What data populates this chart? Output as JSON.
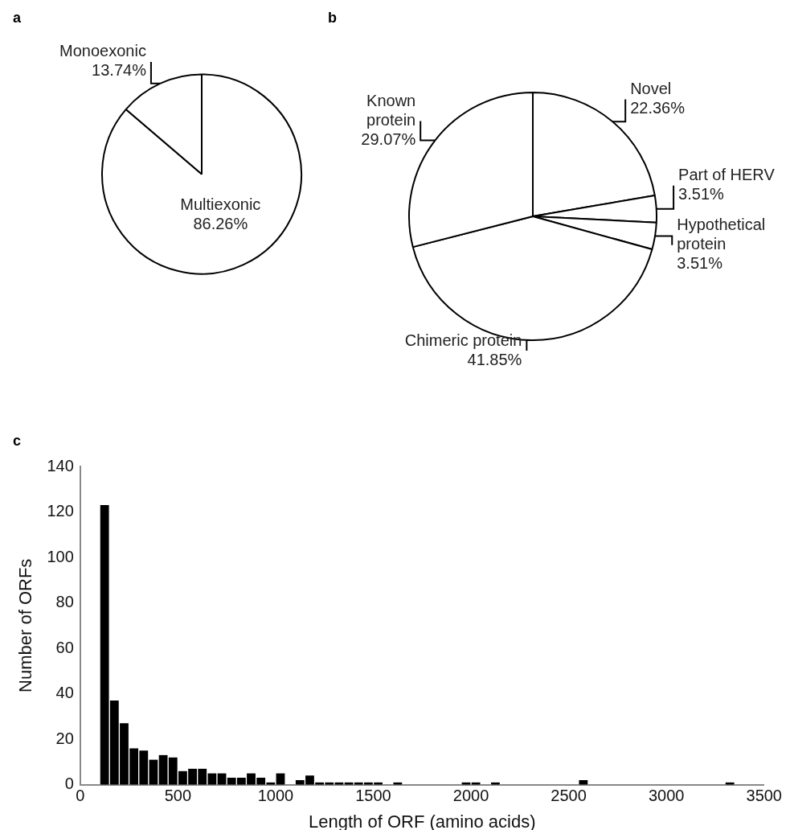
{
  "chart_data": [
    {
      "type": "pie",
      "title": "a",
      "categories": [
        "Multiexonic",
        "Monoexonic"
      ],
      "values": [
        86.26,
        13.74
      ],
      "value_labels": [
        "86.26%",
        "13.74%"
      ],
      "colors": [
        "#ffffff",
        "#ffffff"
      ],
      "legend": false
    },
    {
      "type": "pie",
      "title": "b",
      "categories": [
        "Novel",
        "Part of HERV",
        "Hypothetical protein",
        "Chimeric protein",
        "Known protein"
      ],
      "values": [
        22.36,
        3.51,
        3.51,
        41.85,
        29.07
      ],
      "value_labels": [
        "22.36%",
        "3.51%",
        "3.51%",
        "41.85%",
        "29.07%"
      ],
      "colors": [
        "#ffffff",
        "#ffffff",
        "#ffffff",
        "#ffffff",
        "#ffffff"
      ],
      "legend": false
    },
    {
      "type": "histogram",
      "title": "c",
      "xlabel": "Length of ORF (amino acids)",
      "ylabel": "Number of ORFs",
      "color": "#000000",
      "bins": [
        100,
        150,
        200,
        250,
        300,
        350,
        400,
        450,
        500,
        550,
        600,
        650,
        700,
        750,
        800,
        850,
        900,
        950,
        1000,
        1050,
        1100,
        1150,
        1200,
        1250,
        1300,
        1350,
        1400,
        1450,
        1500,
        1550,
        1600,
        1650,
        1700,
        1750,
        1800,
        1850,
        1900,
        1950,
        2000,
        2050,
        2100,
        2150,
        2200,
        2250,
        2300,
        2350,
        2400,
        2450,
        2500,
        2550,
        2600,
        2650,
        2700,
        2750,
        2800,
        2850,
        2900,
        2950,
        3000,
        3050,
        3100,
        3150,
        3200,
        3250,
        3300,
        3350
      ],
      "values": [
        123,
        37,
        27,
        16,
        15,
        11,
        13,
        12,
        6,
        7,
        7,
        5,
        5,
        3,
        3,
        5,
        3,
        1,
        5,
        0,
        2,
        4,
        1,
        1,
        1,
        1,
        1,
        1,
        1,
        0,
        1,
        0,
        0,
        0,
        0,
        0,
        0,
        1,
        1,
        0,
        1,
        0,
        0,
        0,
        0,
        0,
        0,
        0,
        0,
        2,
        0,
        0,
        0,
        0,
        0,
        0,
        0,
        0,
        0,
        0,
        0,
        0,
        0,
        0,
        1
      ],
      "xlim": [
        0,
        3500
      ],
      "xticks": [
        0,
        500,
        1000,
        1500,
        2000,
        2500,
        3000,
        3500
      ],
      "ylim": [
        0,
        140
      ],
      "yticks": [
        0,
        20,
        40,
        60,
        80,
        100,
        120,
        140
      ],
      "grid": false,
      "legend": false
    }
  ]
}
